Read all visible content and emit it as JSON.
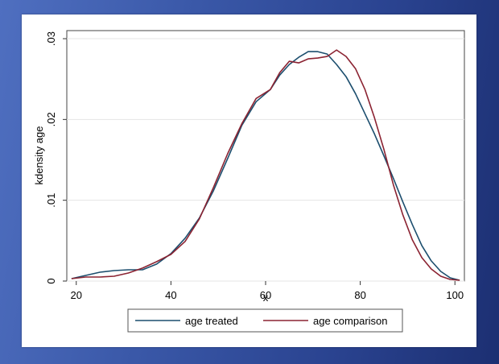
{
  "chart_data": {
    "type": "line",
    "xlabel": "x",
    "ylabel": "kdensity age",
    "xlim": [
      18,
      102
    ],
    "ylim": [
      0,
      0.031
    ],
    "xticks": [
      {
        "value": 20,
        "label": "20"
      },
      {
        "value": 40,
        "label": "40"
      },
      {
        "value": 60,
        "label": "60"
      },
      {
        "value": 80,
        "label": "80"
      },
      {
        "value": 100,
        "label": "100"
      }
    ],
    "yticks": [
      {
        "value": 0,
        "label": "0"
      },
      {
        "value": 0.01,
        "label": ".01"
      },
      {
        "value": 0.02,
        "label": ".02"
      },
      {
        "value": 0.03,
        "label": ".03"
      }
    ],
    "grid": true,
    "legend_position": "bottom",
    "series": [
      {
        "name": "age treated",
        "color": "#1c4e6e",
        "x": [
          19,
          22,
          25,
          28,
          31,
          34,
          37,
          40,
          43,
          46,
          49,
          52,
          55,
          58,
          61,
          63,
          65,
          67,
          69,
          71,
          73,
          75,
          77,
          79,
          81,
          83,
          85,
          87,
          89,
          91,
          93,
          95,
          97,
          99,
          101
        ],
        "y": [
          0.0003,
          0.0007,
          0.0011,
          0.0013,
          0.0014,
          0.0014,
          0.0021,
          0.0034,
          0.0053,
          0.0078,
          0.0112,
          0.0152,
          0.0193,
          0.0222,
          0.0237,
          0.0255,
          0.0268,
          0.0277,
          0.0284,
          0.0284,
          0.0281,
          0.0268,
          0.0253,
          0.0232,
          0.0207,
          0.0182,
          0.0155,
          0.0127,
          0.0098,
          0.007,
          0.0044,
          0.0025,
          0.0012,
          0.0004,
          0.0001
        ]
      },
      {
        "name": "age comparison",
        "color": "#8b2332",
        "x": [
          19,
          22,
          25,
          28,
          31,
          34,
          37,
          40,
          43,
          46,
          49,
          52,
          55,
          58,
          61,
          63,
          65,
          67,
          69,
          71,
          73,
          75,
          77,
          79,
          81,
          83,
          85,
          87,
          89,
          91,
          93,
          95,
          97,
          99,
          101
        ],
        "y": [
          0.0003,
          0.0005,
          0.0005,
          0.0006,
          0.001,
          0.0016,
          0.0024,
          0.0033,
          0.0049,
          0.0077,
          0.0116,
          0.0158,
          0.0195,
          0.0226,
          0.0237,
          0.0258,
          0.0272,
          0.027,
          0.0275,
          0.0276,
          0.0278,
          0.0286,
          0.0278,
          0.0263,
          0.0237,
          0.0202,
          0.0163,
          0.0119,
          0.0082,
          0.0051,
          0.0029,
          0.0015,
          0.0006,
          0.0002,
          0.0001
        ]
      }
    ]
  }
}
